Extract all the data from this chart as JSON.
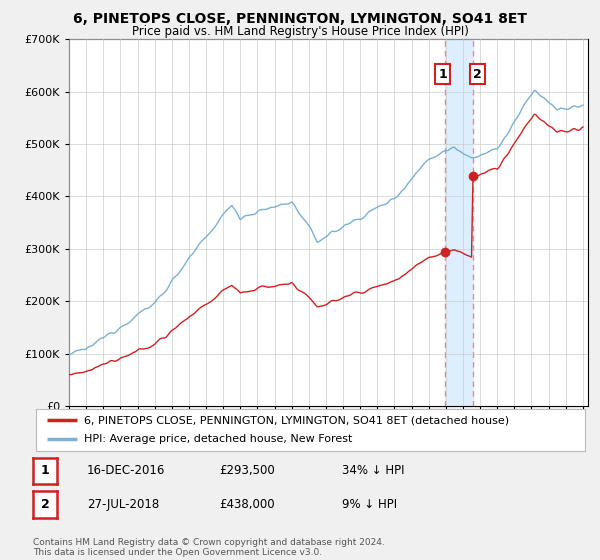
{
  "title": "6, PINETOPS CLOSE, PENNINGTON, LYMINGTON, SO41 8ET",
  "subtitle": "Price paid vs. HM Land Registry's House Price Index (HPI)",
  "legend_line1": "6, PINETOPS CLOSE, PENNINGTON, LYMINGTON, SO41 8ET (detached house)",
  "legend_line2": "HPI: Average price, detached house, New Forest",
  "transaction1_date": "16-DEC-2016",
  "transaction1_price": 293500,
  "transaction1_label": "34% ↓ HPI",
  "transaction1_year": 2016.958,
  "transaction2_date": "27-JUL-2018",
  "transaction2_price": 438000,
  "transaction2_label": "9% ↓ HPI",
  "transaction2_year": 2018.583,
  "footer": "Contains HM Land Registry data © Crown copyright and database right 2024.\nThis data is licensed under the Open Government Licence v3.0.",
  "hpi_color": "#7ab0d4",
  "price_color": "#cc2222",
  "vline_color": "#ee8888",
  "span_color": "#ddeeff",
  "background_color": "#f0f0f0",
  "plot_bg_color": "#ffffff",
  "ylim": [
    0,
    700000
  ],
  "yticks": [
    0,
    100000,
    200000,
    300000,
    400000,
    500000,
    600000,
    700000
  ]
}
